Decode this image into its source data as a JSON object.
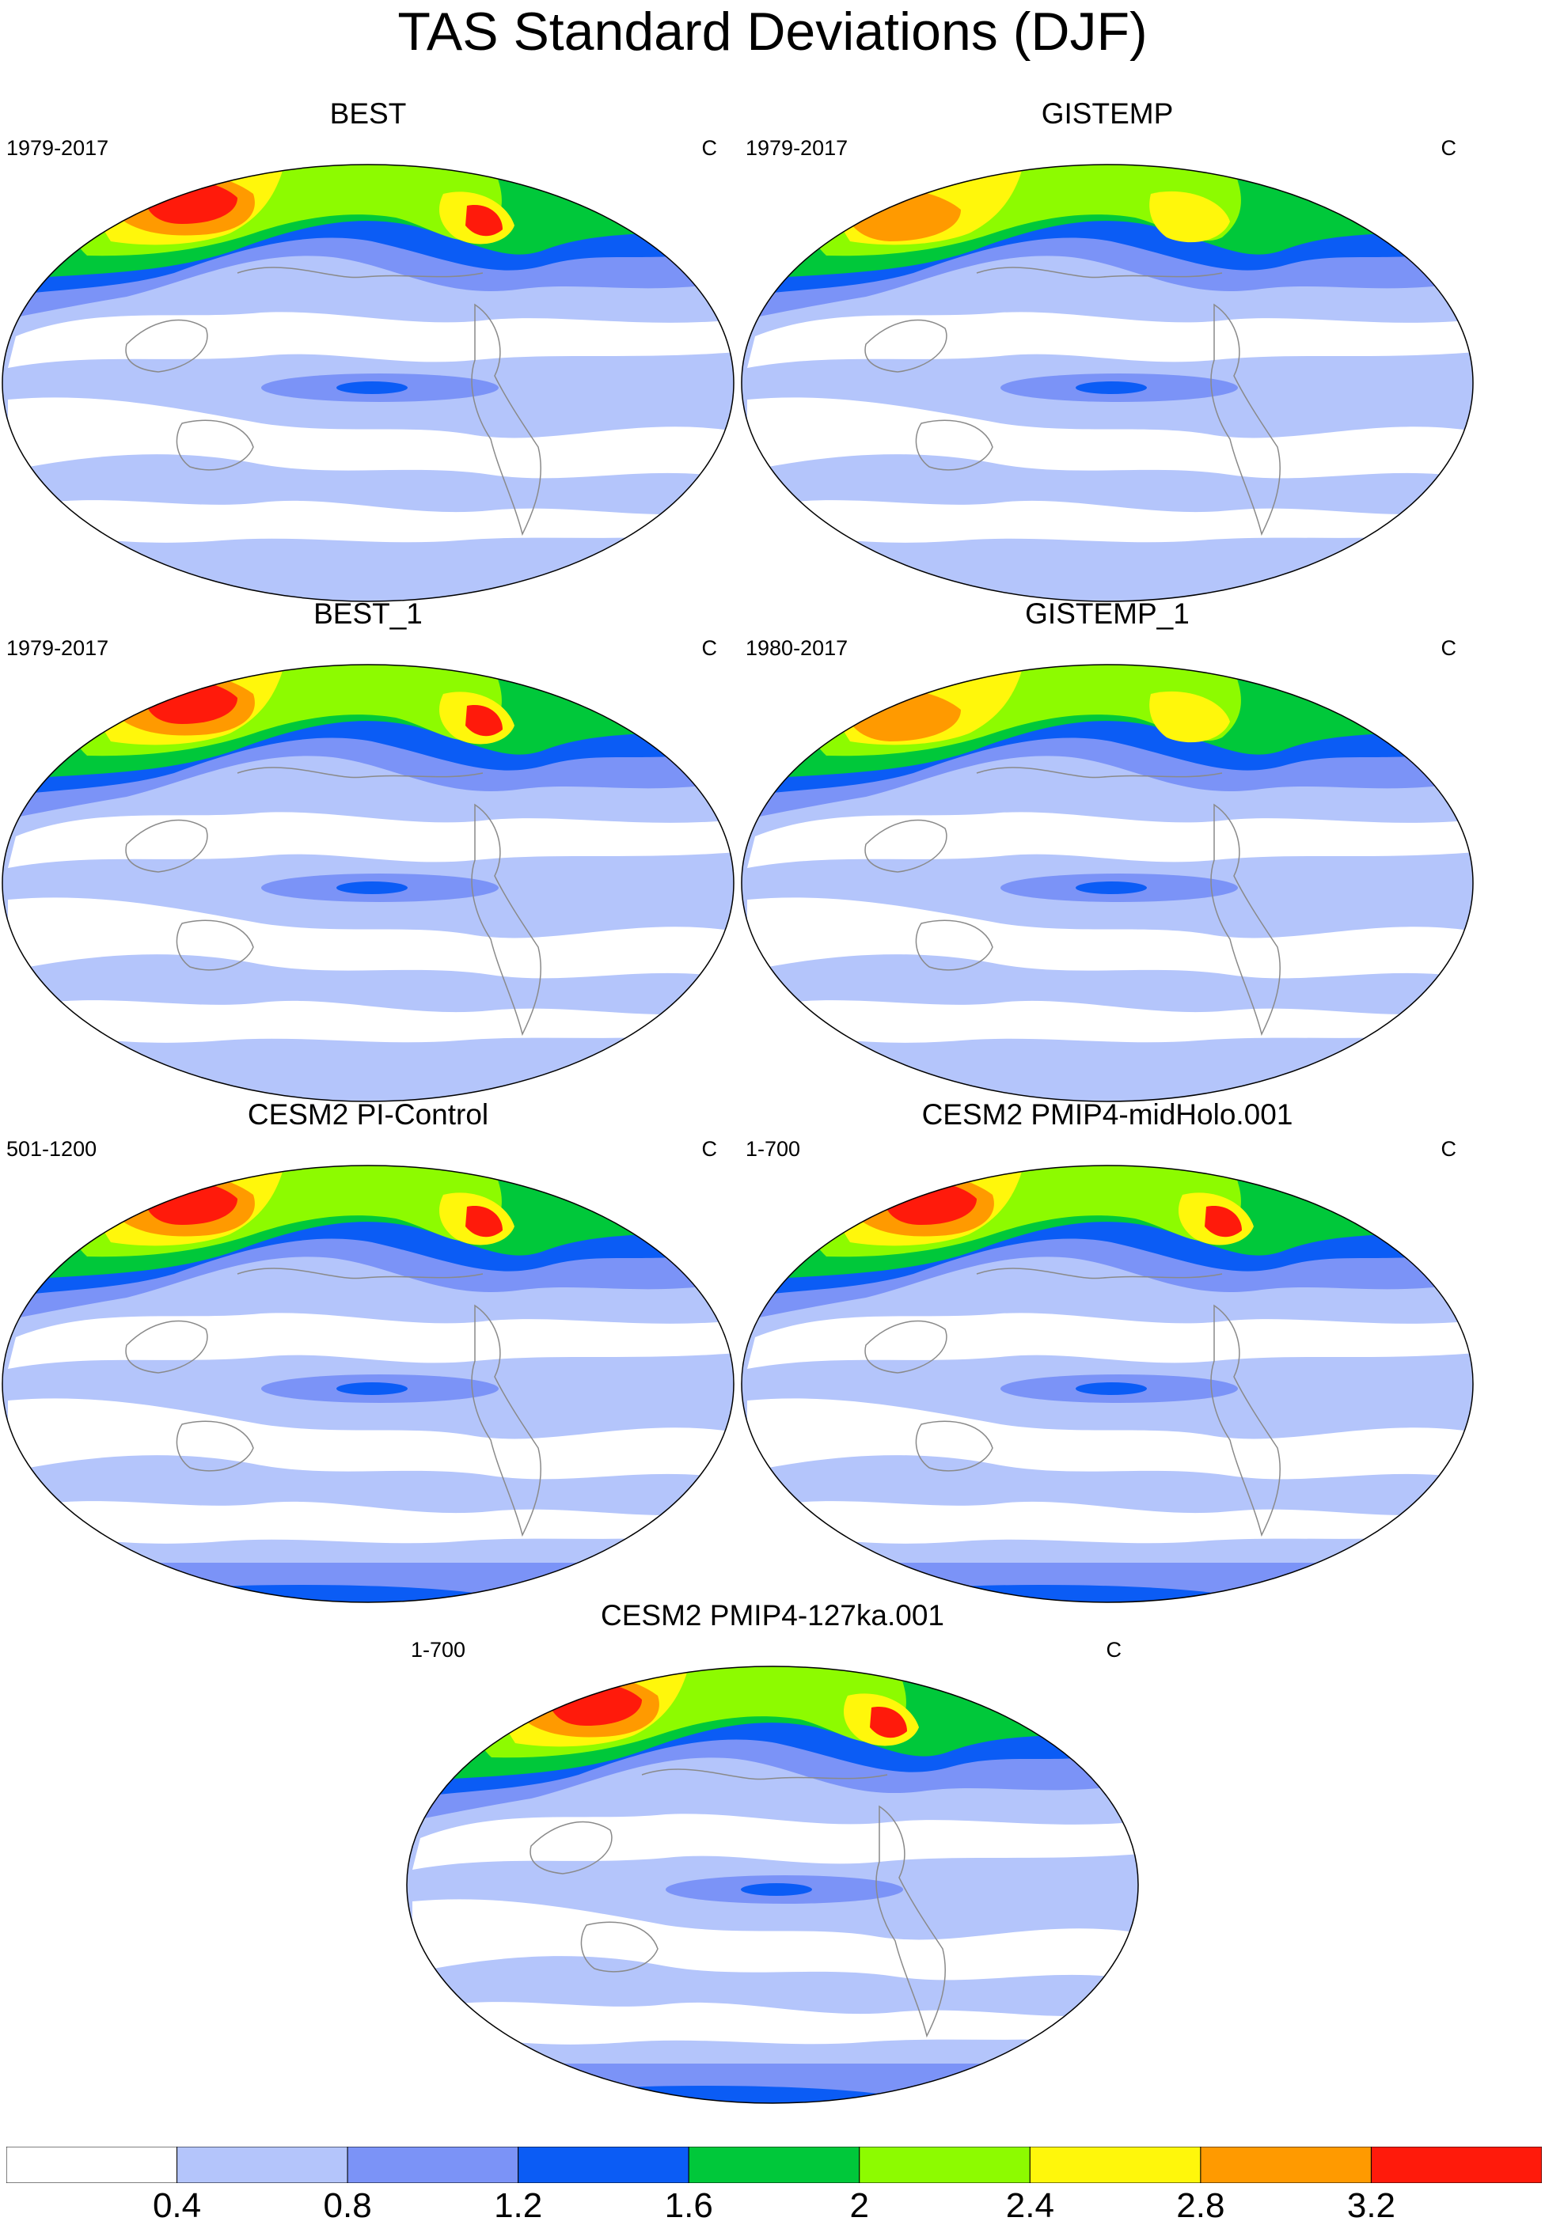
{
  "title": "TAS Standard Deviations (DJF)",
  "colors": {
    "bin0": "#ffffff",
    "bin1": "#b4c5fb",
    "bin2": "#7b93f7",
    "bin3": "#0b5cf5",
    "bin4": "#00c83a",
    "bin5": "#8dfb00",
    "bin6": "#fff70b",
    "bin7": "#ff9a00",
    "bin8": "#ff1a0b",
    "coastline": "#8a8a8a"
  },
  "panels": [
    {
      "title": "BEST",
      "period": "1979-2017",
      "units": "C",
      "style": "obs"
    },
    {
      "title": "GISTEMP",
      "period": "1979-2017",
      "units": "C",
      "style": "gis"
    },
    {
      "title": "BEST_1",
      "period": "1979-2017",
      "units": "C",
      "style": "obs"
    },
    {
      "title": "GISTEMP_1",
      "period": "1980-2017",
      "units": "C",
      "style": "gis"
    },
    {
      "title": "CESM2 PI-Control",
      "period": "501-1200",
      "units": "C",
      "style": "model"
    },
    {
      "title": "CESM2 PMIP4-midHolo.001",
      "period": "1-700",
      "units": "C",
      "style": "model"
    },
    {
      "title": "CESM2 PMIP4-127ka.001",
      "period": "1-700",
      "units": "C",
      "style": "model"
    }
  ],
  "colorbar": {
    "labels": [
      "0.4",
      "0.8",
      "1.2",
      "1.6",
      "2",
      "2.4",
      "2.8",
      "3.2"
    ]
  }
}
